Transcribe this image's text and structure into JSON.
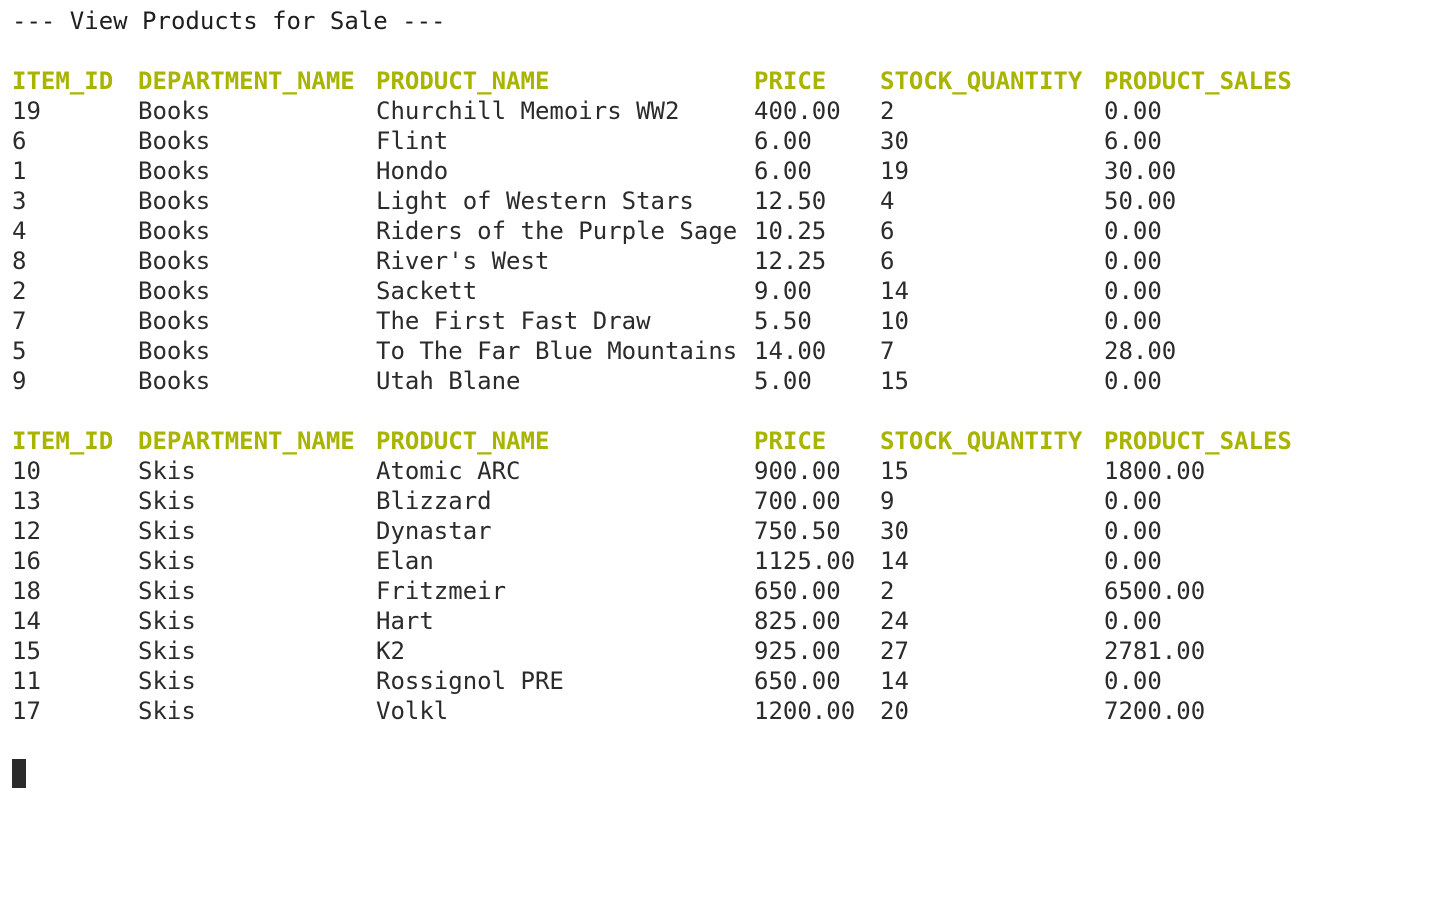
{
  "title": "--- View Products for Sale ---",
  "tables": [
    {
      "headers": [
        "ITEM_ID",
        "DEPARTMENT_NAME",
        "PRODUCT_NAME",
        "PRICE",
        "STOCK_QUANTITY",
        "PRODUCT_SALES"
      ],
      "rows": [
        [
          "19",
          "Books",
          "Churchill Memoirs WW2",
          "400.00",
          "2",
          "0.00"
        ],
        [
          "6",
          "Books",
          "Flint",
          "6.00",
          "30",
          "6.00"
        ],
        [
          "1",
          "Books",
          "Hondo",
          "6.00",
          "19",
          "30.00"
        ],
        [
          "3",
          "Books",
          "Light of Western Stars",
          "12.50",
          "4",
          "50.00"
        ],
        [
          "4",
          "Books",
          "Riders of the Purple Sage",
          "10.25",
          "6",
          "0.00"
        ],
        [
          "8",
          "Books",
          "River's West",
          "12.25",
          "6",
          "0.00"
        ],
        [
          "2",
          "Books",
          "Sackett",
          "9.00",
          "14",
          "0.00"
        ],
        [
          "7",
          "Books",
          "The First Fast Draw",
          "5.50",
          "10",
          "0.00"
        ],
        [
          "5",
          "Books",
          "To The Far Blue Mountains",
          "14.00",
          "7",
          "28.00"
        ],
        [
          "9",
          "Books",
          "Utah Blane",
          "5.00",
          "15",
          "0.00"
        ]
      ]
    },
    {
      "headers": [
        "ITEM_ID",
        "DEPARTMENT_NAME",
        "PRODUCT_NAME",
        "PRICE",
        "STOCK_QUANTITY",
        "PRODUCT_SALES"
      ],
      "rows": [
        [
          "10",
          "Skis",
          "Atomic ARC",
          "900.00",
          "15",
          "1800.00"
        ],
        [
          "13",
          "Skis",
          "Blizzard",
          "700.00",
          "9",
          "0.00"
        ],
        [
          "12",
          "Skis",
          "Dynastar",
          "750.50",
          "30",
          "0.00"
        ],
        [
          "16",
          "Skis",
          "Elan",
          "1125.00",
          "14",
          "0.00"
        ],
        [
          "18",
          "Skis",
          "Fritzmeir",
          "650.00",
          "2",
          "6500.00"
        ],
        [
          "14",
          "Skis",
          "Hart",
          "825.00",
          "24",
          "0.00"
        ],
        [
          "15",
          "Skis",
          "K2",
          "925.00",
          "27",
          "2781.00"
        ],
        [
          "11",
          "Skis",
          "Rossignol PRE",
          "650.00",
          "14",
          "0.00"
        ],
        [
          "17",
          "Skis",
          "Volkl",
          "1200.00",
          "20",
          "7200.00"
        ]
      ]
    }
  ],
  "colors": {
    "header": "#a8b400",
    "text": "#2b2b2b",
    "background": "#ffffff"
  }
}
